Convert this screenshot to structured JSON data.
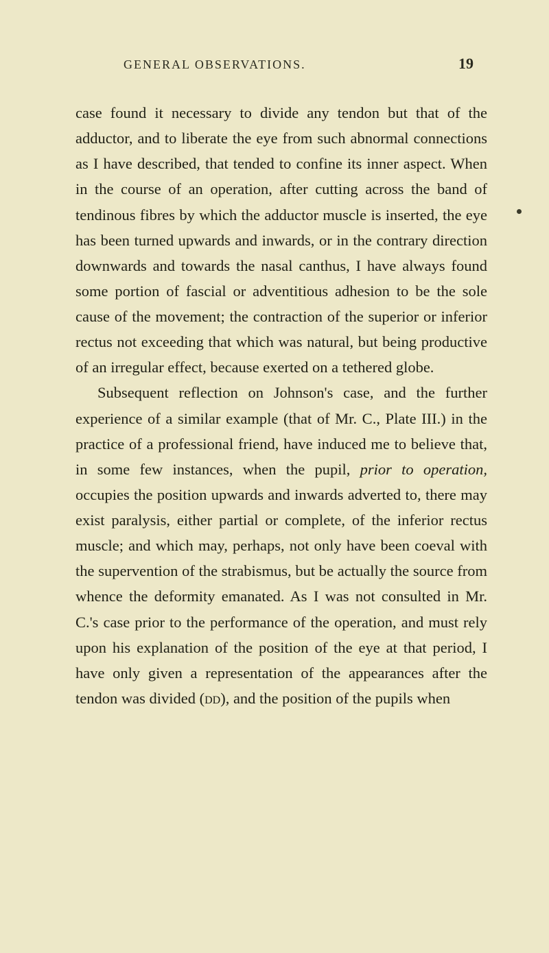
{
  "header": {
    "title": "GENERAL OBSERVATIONS.",
    "page_number": "19"
  },
  "paragraphs": {
    "p1_part1": "case found it necessary to divide any tendon but that of the adductor, and to liberate the eye from such abnormal connections as I have described, that tended to confine its inner aspect. When in the course of an operation, after cutting across the band of tendinous fibres by which the adductor muscle is inserted, the eye has been turned upwards and inwards, or in the contrary direction downwards and towards the nasal canthus, I have always found some portion of fascial or adventitious adhesion to be the sole cause of the movement; the contraction of the superior or inferior rectus not exceeding that which was natural, but being productive of an irregular effect, because exerted on a tethered globe.",
    "p2_part1": "Subsequent reflection on Johnson's case, and the further experience of a similar example (that of Mr. C., Plate III.) in the practice of a professional friend, have induced me to believe that, in some few instances, when the pupil, ",
    "p2_italic": "prior to operation,",
    "p2_part2": " occupies the position upwards and inwards adverted to, there may exist paralysis, either partial or complete, of the inferior rectus muscle; and which may, perhaps, not only have been coeval with the supervention of the strabismus, but be actually the source from whence the deformity emanated. As I was not consulted in Mr. C.'s case prior to the performance of the operation, and must rely upon his explanation of the position of the eye at that period, I have only given a representation of the appearances after the tendon was divided (",
    "p2_dd": "dd",
    "p2_part3": "), and the position of the pupils when"
  },
  "colors": {
    "background": "#ede8c8",
    "text": "#1f1f15"
  },
  "typography": {
    "body_fontsize": 22.5,
    "line_height": 1.65,
    "header_fontsize": 18,
    "pagenum_fontsize": 22
  }
}
